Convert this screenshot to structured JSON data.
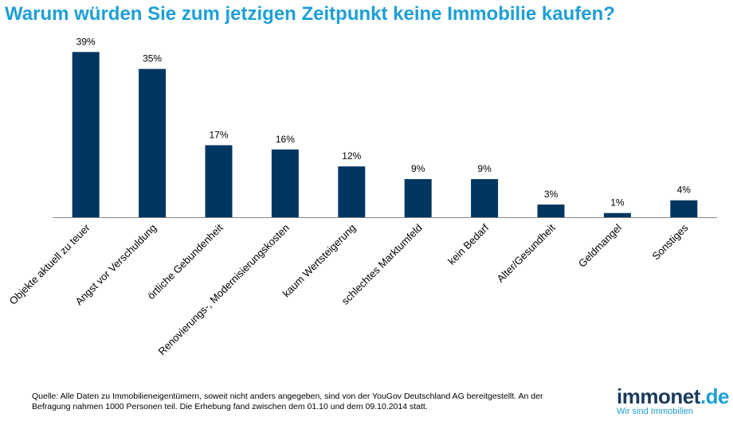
{
  "header": {
    "title": "Warum würden Sie zum jetzigen Zeitpunkt keine Immobilie kaufen?"
  },
  "chart_data": {
    "type": "bar",
    "categories": [
      "Objekte aktuell zu teuer",
      "Angst vor Verschuldung",
      "örtliche Gebundenheit",
      "Renovierungs-, Modernisierungskosten",
      "kaum Wertsteigerung",
      "schlechtes Marktumfeld",
      "kein Bedarf",
      "Alter/Gesundheit",
      "Geldmangel",
      "Sonstiges"
    ],
    "values": [
      39,
      35,
      17,
      16,
      12,
      9,
      9,
      3,
      1,
      4
    ],
    "value_labels": [
      "39%",
      "35%",
      "17%",
      "16%",
      "12%",
      "9%",
      "9%",
      "3%",
      "1%",
      "4%"
    ],
    "ylim": [
      0,
      40
    ],
    "grid": false,
    "bar_color": "#003660"
  },
  "footer": {
    "source_line1": "Quelle: Alle Daten zu Immobilieneigentümern, soweit nicht anders angegeben, sind von der YouGov Deutschland AG bereitgestellt. An der",
    "source_line2": "Befragung nahmen 1000 Personen teil. Die Erhebung fand zwischen dem 01.10 und dem 09.10.2014 statt."
  },
  "logo": {
    "part1": "immo",
    "part2": "net",
    "part3": ".de",
    "tagline": "Wir sind Immobilien"
  },
  "colors": {
    "title": "#1e9fd5",
    "bar": "#003660"
  }
}
